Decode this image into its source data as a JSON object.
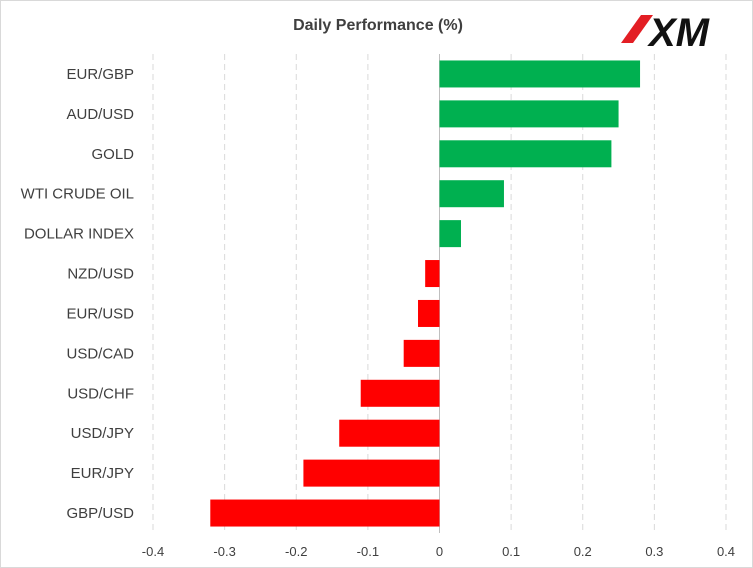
{
  "chart_data": {
    "type": "bar",
    "orientation": "horizontal",
    "title": "Daily Performance  (%)",
    "xlabel": "",
    "ylabel": "",
    "xlim": [
      -0.4,
      0.4
    ],
    "ticks": [
      "-0.4",
      "-0.3",
      "-0.2",
      "-0.1",
      "0",
      "0.1",
      "0.2",
      "0.3",
      "0.4"
    ],
    "tick_values": [
      -0.4,
      -0.3,
      -0.2,
      -0.1,
      0,
      0.1,
      0.2,
      0.3,
      0.4
    ],
    "grid": "vertical dashed",
    "categories": [
      "EUR/GBP",
      "AUD/USD",
      "GOLD",
      "WTI CRUDE OIL",
      "DOLLAR INDEX",
      "NZD/USD",
      "EUR/USD",
      "USD/CAD",
      "USD/CHF",
      "USD/JPY",
      "EUR/JPY",
      "GBP/USD"
    ],
    "values": [
      0.28,
      0.25,
      0.24,
      0.09,
      0.03,
      -0.02,
      -0.03,
      -0.05,
      -0.11,
      -0.14,
      -0.19,
      -0.32
    ],
    "colors": {
      "positive": "#00b050",
      "negative": "#ff0000"
    }
  },
  "brand": {
    "logo_text": "XM",
    "color": "#111111",
    "accent": "#e31e24"
  }
}
